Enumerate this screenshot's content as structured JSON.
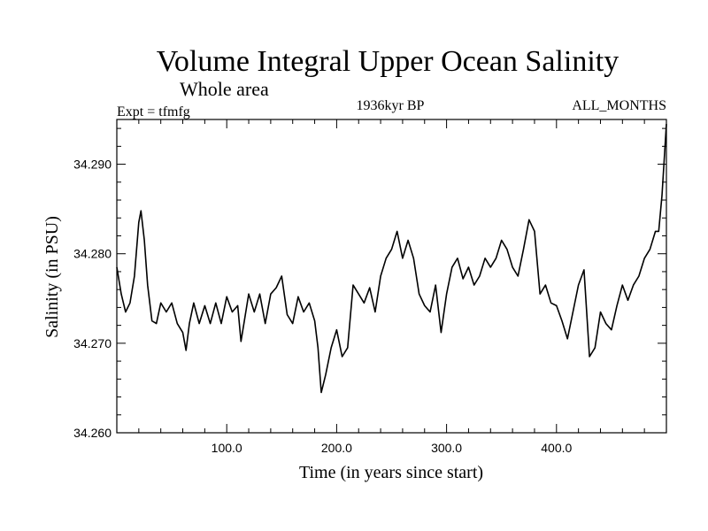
{
  "chart_data": {
    "type": "line",
    "title": "Volume Integral Upper Ocean Salinity",
    "subtitle": "Whole area",
    "experiment": "Expt = tfmfg",
    "period": "1936kyr BP",
    "season": "ALL_MONTHS",
    "xlabel": "Time (in years since start)",
    "ylabel": "Salinity (in PSU)",
    "xlim": [
      0,
      500
    ],
    "ylim": [
      34.26,
      34.295
    ],
    "xticks": [
      100,
      200,
      300,
      400
    ],
    "xtick_labels": [
      "100.0",
      "200.0",
      "300.0",
      "400.0"
    ],
    "yticks": [
      34.26,
      34.27,
      34.28,
      34.29
    ],
    "ytick_labels": [
      "34.260",
      "34.270",
      "34.280",
      "34.290"
    ],
    "series": [
      {
        "name": "Salinity",
        "x": [
          0,
          4,
          8,
          12,
          16,
          20,
          22,
          25,
          28,
          32,
          36,
          40,
          45,
          50,
          55,
          60,
          63,
          66,
          70,
          75,
          80,
          85,
          90,
          95,
          100,
          105,
          110,
          113,
          116,
          120,
          125,
          130,
          135,
          140,
          145,
          150,
          155,
          160,
          165,
          170,
          175,
          180,
          183,
          186,
          190,
          195,
          200,
          205,
          210,
          215,
          220,
          225,
          230,
          235,
          240,
          245,
          250,
          255,
          260,
          265,
          270,
          275,
          280,
          285,
          290,
          295,
          300,
          305,
          310,
          315,
          320,
          325,
          330,
          335,
          340,
          345,
          350,
          355,
          360,
          365,
          370,
          375,
          380,
          385,
          390,
          395,
          400,
          405,
          410,
          415,
          420,
          425,
          430,
          435,
          440,
          445,
          450,
          455,
          460,
          465,
          470,
          475,
          480,
          485,
          490,
          493,
          496,
          498,
          500
        ],
        "values": [
          34.2785,
          34.2755,
          34.2735,
          34.2745,
          34.2775,
          34.2835,
          34.2848,
          34.2815,
          34.2765,
          34.2725,
          34.2722,
          34.2745,
          34.2735,
          34.2745,
          34.2722,
          34.2712,
          34.2692,
          34.2722,
          34.2745,
          34.2722,
          34.2742,
          34.2722,
          34.2745,
          34.2722,
          34.2752,
          34.2735,
          34.2742,
          34.2702,
          34.2725,
          34.2755,
          34.2735,
          34.2755,
          34.2722,
          34.2755,
          34.2762,
          34.2775,
          34.2732,
          34.2722,
          34.2752,
          34.2735,
          34.2745,
          34.2725,
          34.2695,
          34.2645,
          34.2665,
          34.2695,
          34.2715,
          34.2685,
          34.2695,
          34.2765,
          34.2755,
          34.2745,
          34.2762,
          34.2735,
          34.2775,
          34.2795,
          34.2805,
          34.2825,
          34.2795,
          34.2815,
          34.2795,
          34.2755,
          34.2742,
          34.2735,
          34.2765,
          34.2712,
          34.2755,
          34.2785,
          34.2795,
          34.2772,
          34.2785,
          34.2765,
          34.2775,
          34.2795,
          34.2785,
          34.2795,
          34.2815,
          34.2805,
          34.2785,
          34.2775,
          34.2805,
          34.2838,
          34.2825,
          34.2755,
          34.2765,
          34.2745,
          34.2742,
          34.2725,
          34.2705,
          34.2735,
          34.2765,
          34.2782,
          34.2685,
          34.2695,
          34.2735,
          34.2722,
          34.2715,
          34.2742,
          34.2765,
          34.2748,
          34.2765,
          34.2775,
          34.2795,
          34.2805,
          34.2825,
          34.2825,
          34.2865,
          34.2905,
          34.2945
        ]
      }
    ]
  }
}
